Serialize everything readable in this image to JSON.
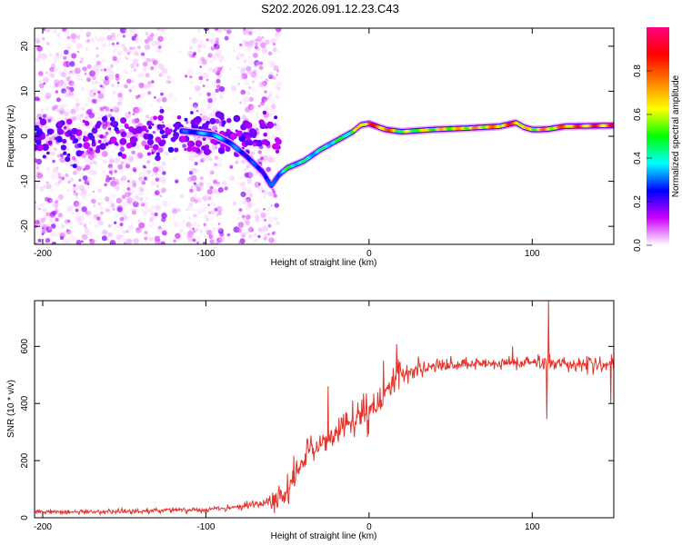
{
  "title": "S202.2026.091.12.23.C43",
  "chart_data": [
    {
      "type": "heatmap",
      "name": "spectrogram",
      "xlabel": "Height of straight line (km)",
      "ylabel": "Frequency (Hz)",
      "xlim": [
        -205,
        150
      ],
      "ylim": [
        -24,
        24
      ],
      "xticks": [
        -200,
        -100,
        0,
        100
      ],
      "yticks": [
        -20,
        -10,
        0,
        10,
        20
      ],
      "ridge": {
        "x": [
          -115,
          -105,
          -95,
          -85,
          -75,
          -65,
          -60,
          -55,
          -50,
          -40,
          -30,
          -20,
          -10,
          -5,
          0,
          10,
          20,
          40,
          60,
          80,
          85,
          90,
          95,
          100,
          105,
          110,
          120,
          150
        ],
        "freq": [
          1.2,
          0.8,
          0.3,
          -1.5,
          -4.5,
          -8.0,
          -11.0,
          -8.5,
          -7.0,
          -5.5,
          -3.0,
          -1.0,
          1.0,
          2.5,
          2.8,
          1.5,
          1.0,
          1.5,
          1.8,
          2.2,
          2.6,
          3.0,
          2.0,
          1.5,
          1.5,
          1.6,
          2.2,
          2.4
        ],
        "amplitude": [
          0.3,
          0.35,
          0.4,
          0.35,
          0.3,
          0.3,
          0.3,
          0.4,
          0.5,
          0.45,
          0.45,
          0.5,
          0.55,
          0.8,
          0.9,
          0.9,
          0.6,
          0.7,
          0.75,
          0.8,
          0.85,
          0.9,
          0.7,
          0.7,
          0.8,
          0.75,
          0.85,
          0.9
        ]
      },
      "noise_region_km": [
        -205,
        -55
      ]
    },
    {
      "type": "colorbar",
      "name": "colorbar",
      "label": "Normalized spectral amplitude",
      "range": [
        0.0,
        1.0
      ],
      "ticks": [
        "0.0",
        "0.2",
        "0.4",
        "0.6",
        "0.8"
      ],
      "colors": [
        "#ffffff",
        "#cc00ff",
        "#0000ff",
        "#00ffff",
        "#00ff00",
        "#ffff00",
        "#ff8000",
        "#ff0000",
        "#ff0080"
      ]
    },
    {
      "type": "line",
      "name": "snr",
      "xlabel": "Height of straight line (km)",
      "ylabel": "SNR (10 * v/v)",
      "xlim": [
        -205,
        150
      ],
      "ylim": [
        0,
        760
      ],
      "xticks": [
        -200,
        -100,
        0,
        100
      ],
      "yticks": [
        0,
        200,
        400,
        600
      ],
      "color": "#e8322a",
      "trend": {
        "x": [
          -205,
          -150,
          -100,
          -80,
          -60,
          -50,
          -45,
          -40,
          -30,
          -20,
          -10,
          0,
          10,
          20,
          30,
          40,
          60,
          80,
          100,
          120,
          150
        ],
        "y": [
          20,
          22,
          28,
          40,
          55,
          80,
          130,
          210,
          260,
          300,
          330,
          360,
          440,
          500,
          520,
          530,
          535,
          540,
          545,
          540,
          535
        ]
      },
      "spikes": [
        {
          "x": 110,
          "y": 760
        },
        {
          "x": 109,
          "y": 345
        },
        {
          "x": 148,
          "y": 400
        },
        {
          "x": -25,
          "y": 460
        },
        {
          "x": 9,
          "y": 550
        },
        {
          "x": 88,
          "y": 600
        }
      ]
    }
  ]
}
